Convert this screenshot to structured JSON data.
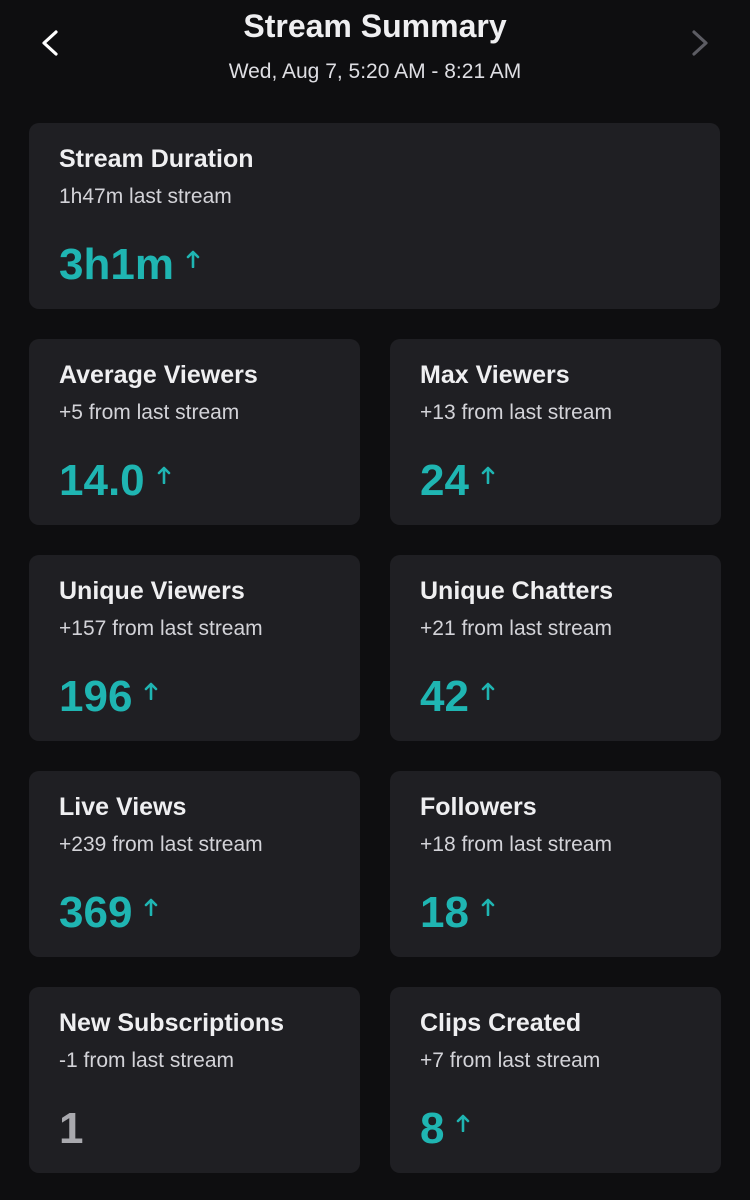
{
  "header": {
    "title": "Stream Summary",
    "subtitle": "Wed, Aug 7, 5:20 AM - 8:21 AM"
  },
  "cards": [
    {
      "title": "Stream Duration",
      "subtitle": "1h47m last stream",
      "value": "3h1m"
    },
    {
      "title": "Average Viewers",
      "subtitle": "+5 from last stream",
      "value": "14.0"
    },
    {
      "title": "Max Viewers",
      "subtitle": "+13 from last stream",
      "value": "24"
    },
    {
      "title": "Unique Viewers",
      "subtitle": "+157 from last stream",
      "value": "196"
    },
    {
      "title": "Unique Chatters",
      "subtitle": "+21 from last stream",
      "value": "42"
    },
    {
      "title": "Live Views",
      "subtitle": "+239 from last stream",
      "value": "369"
    },
    {
      "title": "Followers",
      "subtitle": "+18 from last stream",
      "value": "18"
    },
    {
      "title": "New Subscriptions",
      "subtitle": "-1 from last stream",
      "value": "1"
    },
    {
      "title": "Clips Created",
      "subtitle": "+7 from last stream",
      "value": "8"
    }
  ]
}
